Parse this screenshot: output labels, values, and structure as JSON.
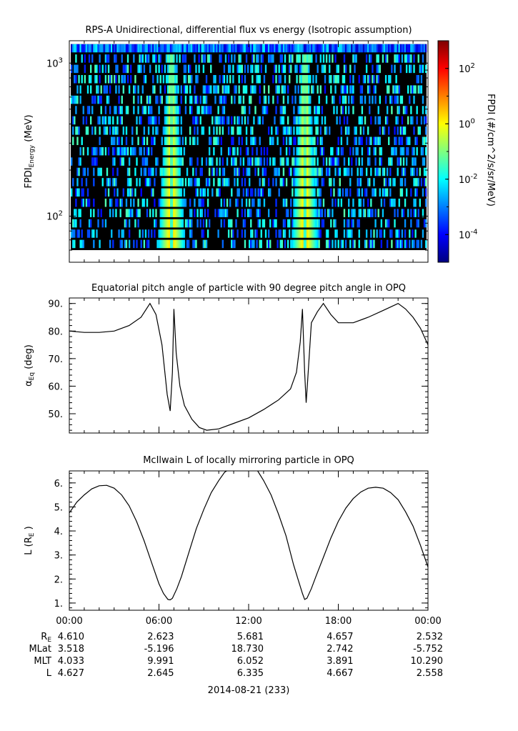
{
  "chart_data": [
    {
      "type": "heatmap",
      "title": "RPS-A Unidirectional, differential flux vs energy (Isotropic assumption)",
      "ylabel_main": "FPDI",
      "ylabel_sub": "Energy",
      "ylabel_unit": "(MeV)",
      "yscale": "log",
      "ylim": [
        50,
        1400
      ],
      "y_ticks": [
        {
          "value": 100,
          "base": "10",
          "exp": "2"
        },
        {
          "value": 1000,
          "base": "10",
          "exp": "3"
        }
      ],
      "x_range_hours": [
        0,
        24
      ],
      "colorbar": {
        "label": "FPDI (#/cm^2/s/sr/MeV)",
        "scale": "log",
        "range": [
          1e-05,
          1000.0
        ],
        "ticks": [
          {
            "base": "10",
            "exp": "2"
          },
          {
            "base": "10",
            "exp": "0"
          },
          {
            "base": "10",
            "exp": "-2"
          },
          {
            "base": "10",
            "exp": "-4"
          }
        ],
        "tick_values": [
          100,
          1,
          0.01,
          0.0001
        ],
        "colors": [
          "#00007f",
          "#0000ff",
          "#007fff",
          "#00ffff",
          "#7fff7f",
          "#ffff00",
          "#ff7f00",
          "#ff0000",
          "#7f0000"
        ]
      },
      "energy_rows": 20,
      "time_columns": 240,
      "flux_features": [
        {
          "desc": "dense low-energy belt pass",
          "center_hour": 6.8,
          "peak_flux": 5
        },
        {
          "desc": "dense low-energy belt pass",
          "center_hour": 15.8,
          "peak_flux": 5
        }
      ],
      "background_flux_range": [
        0.0001,
        0.05
      ],
      "seed": 7
    },
    {
      "type": "line",
      "title": "Equatorial pitch angle of particle with 90 degree pitch angle in OPQ",
      "ylabel_main": "α",
      "ylabel_sub": "Eq",
      "ylabel_unit": "(deg)",
      "ylim": [
        43,
        92
      ],
      "y_ticks": [
        50,
        60,
        70,
        80,
        90
      ],
      "y_tick_labels": [
        "50.",
        "60.",
        "70.",
        "80.",
        "90."
      ],
      "x": [
        0,
        1,
        2,
        3,
        4,
        4.8,
        5.4,
        5.8,
        6.2,
        6.55,
        6.75,
        6.9,
        7.0,
        7.15,
        7.4,
        7.7,
        8.2,
        8.7,
        9.2,
        10,
        11,
        12,
        13,
        14,
        14.8,
        15.2,
        15.45,
        15.6,
        15.75,
        15.85,
        15.95,
        16.2,
        16.6,
        17.0,
        17.5,
        18,
        19,
        20,
        21,
        22,
        22.5,
        23,
        23.5,
        24
      ],
      "y": [
        80,
        79.5,
        79.5,
        80,
        82,
        85,
        90,
        86,
        75,
        57,
        51,
        65,
        88,
        72,
        60,
        53,
        48,
        45,
        44,
        44.5,
        46.5,
        48.5,
        51.5,
        55,
        59,
        65,
        76,
        88,
        65,
        54,
        62,
        83,
        87,
        90,
        86,
        83,
        83,
        85,
        87.5,
        90,
        88,
        85,
        81,
        75
      ]
    },
    {
      "type": "line",
      "title": "McIlwain L of locally mirroring particle in OPQ",
      "ylabel_main": "L (R",
      "ylabel_sub": "E",
      "ylabel_unit": ")",
      "ylim": [
        0.7,
        6.5
      ],
      "y_ticks": [
        1,
        2,
        3,
        4,
        5,
        6
      ],
      "y_tick_labels": [
        "1.",
        "2.",
        "3.",
        "4.",
        "5.",
        "6."
      ],
      "x": [
        0,
        0.5,
        1,
        1.5,
        2,
        2.5,
        3,
        3.5,
        4,
        4.5,
        5,
        5.5,
        6,
        6.3,
        6.6,
        6.75,
        6.9,
        7.2,
        7.5,
        8,
        8.5,
        9,
        9.5,
        10,
        10.4,
        10.8,
        11.2,
        12,
        12.6,
        13,
        13.5,
        14,
        14.5,
        15,
        15.3,
        15.6,
        15.75,
        15.9,
        16.2,
        16.5,
        17,
        17.5,
        18,
        18.5,
        19,
        19.5,
        20,
        20.5,
        21,
        21.5,
        22,
        22.5,
        23,
        23.5,
        24
      ],
      "y": [
        4.75,
        5.2,
        5.5,
        5.75,
        5.88,
        5.9,
        5.78,
        5.5,
        5.05,
        4.4,
        3.6,
        2.7,
        1.8,
        1.4,
        1.15,
        1.13,
        1.2,
        1.6,
        2.1,
        3.1,
        4.1,
        4.9,
        5.6,
        6.1,
        6.45,
        6.6,
        6.6,
        6.6,
        6.5,
        6.1,
        5.5,
        4.7,
        3.8,
        2.6,
        2.0,
        1.4,
        1.15,
        1.2,
        1.6,
        2.1,
        2.9,
        3.7,
        4.4,
        4.95,
        5.35,
        5.62,
        5.78,
        5.82,
        5.78,
        5.6,
        5.3,
        4.8,
        4.2,
        3.4,
        2.5
      ]
    }
  ],
  "time_axis": {
    "tick_hours": [
      0,
      6,
      12,
      18,
      24
    ],
    "tick_labels": [
      "00:00",
      "06:00",
      "12:00",
      "18:00",
      "00:00"
    ],
    "date_label": "2014-08-21 (233)"
  },
  "ephemeris": {
    "rows": [
      {
        "label": "R",
        "label_sub": "E",
        "values": [
          "4.610",
          "2.623",
          "5.681",
          "4.657",
          "2.532"
        ]
      },
      {
        "label": "MLat",
        "label_sub": "",
        "values": [
          "3.518",
          "-5.196",
          "18.730",
          "2.742",
          "-5.752"
        ]
      },
      {
        "label": "MLT",
        "label_sub": "",
        "values": [
          "4.033",
          "9.991",
          "6.052",
          "3.891",
          "10.290"
        ]
      },
      {
        "label": "L",
        "label_sub": "",
        "values": [
          "4.627",
          "2.645",
          "6.335",
          "4.667",
          "2.558"
        ]
      }
    ]
  }
}
